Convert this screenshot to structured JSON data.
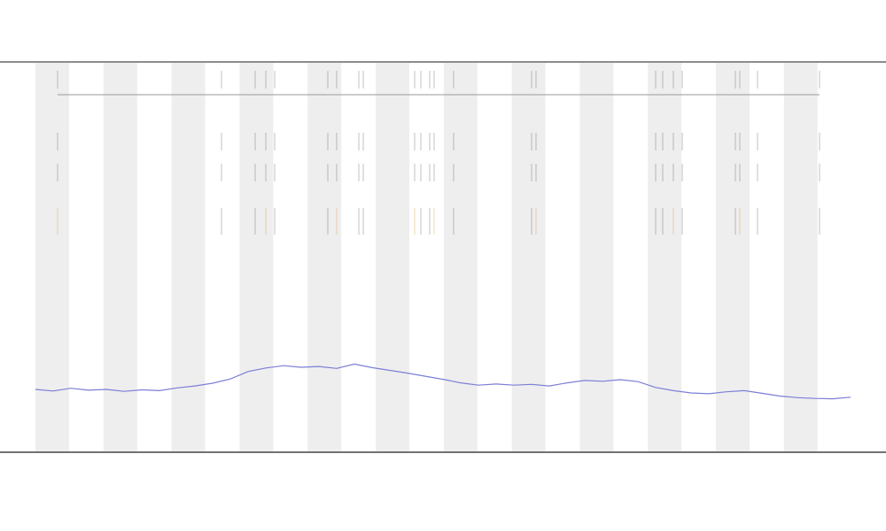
{
  "chart_data": {
    "type": "line",
    "series": [
      {
        "color": "#7b7fd6",
        "values": [
          15.9,
          15.5,
          16.2,
          15.7,
          15.9,
          15.4,
          15.8,
          15.6,
          16.3,
          16.8,
          17.5,
          18.6,
          20.5,
          21.4,
          22.0,
          21.6,
          21.8,
          21.3,
          22.4,
          21.5,
          20.8,
          20.1,
          19.3,
          18.5,
          17.6,
          17.0,
          17.3,
          17.0,
          17.2,
          16.8,
          17.6,
          18.2,
          18.0,
          18.4,
          17.9,
          16.4,
          15.6,
          15.0,
          14.8,
          15.3,
          15.6,
          14.9,
          14.2,
          13.8,
          13.6,
          13.5,
          13.9
        ]
      }
    ],
    "ylim": [
      0,
      100
    ]
  }
}
